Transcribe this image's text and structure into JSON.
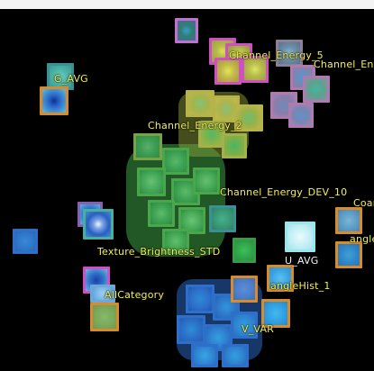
{
  "palette": {
    "background": "#000000",
    "label_color": "#f5f04a",
    "label_color_alt": "#f2f2f2"
  },
  "labels": {
    "channel_energy_5": "Channel_Energy_5",
    "channel_en_truncated": "Channel_En",
    "g_avg": "G_AVG",
    "channel_energy_2": "Channel_Energy_2",
    "channel_energy_dev_10": "Channel_Energy_DEV_10",
    "coar_truncated": "Coar",
    "angl_truncated": "angle",
    "texture_brightness_std": "Texture_Brightness_STD",
    "u_avg": "U_AVG",
    "all_category": "AllCategory",
    "angle_hist_1": "angleHist_1",
    "v_var": "V_VAR"
  },
  "icons": {
    "thumbnail": "feature-texture-thumbnail"
  },
  "clusters": {
    "magenta": "#d24fc8",
    "mauve": "#b07ab0",
    "olive": "#b5b34a",
    "green": "#3fa33a",
    "blue": "#2f6fc9",
    "cyan": "#46b6d8",
    "orange": "#d98a2a",
    "teal": "#3c8f95"
  }
}
